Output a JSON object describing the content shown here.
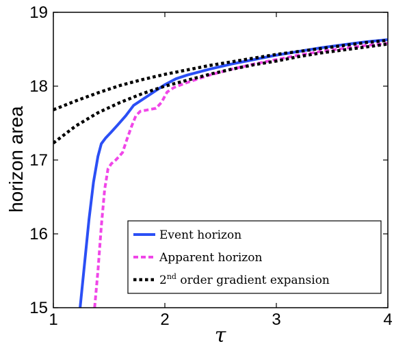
{
  "chart_data": {
    "type": "line",
    "title": "",
    "xlabel": "τ",
    "ylabel": "horizon area",
    "xlim": [
      1,
      4
    ],
    "ylim": [
      15,
      19
    ],
    "xticks": [
      "1",
      "2",
      "3",
      "4"
    ],
    "yticks": [
      "15",
      "16",
      "17",
      "18",
      "19"
    ],
    "grid": false,
    "legend_position": "bottom-right",
    "series": [
      {
        "name": "Event horizon",
        "color": "#2b4ff5",
        "style": "solid",
        "x": [
          1.24,
          1.28,
          1.32,
          1.36,
          1.4,
          1.43,
          1.47,
          1.52,
          1.58,
          1.65,
          1.72,
          1.8,
          1.9,
          2.0,
          2.1,
          2.2,
          2.4,
          2.6,
          2.8,
          3.0,
          3.2,
          3.4,
          3.6,
          3.8,
          4.0
        ],
        "y": [
          15.0,
          15.6,
          16.2,
          16.7,
          17.05,
          17.22,
          17.3,
          17.38,
          17.48,
          17.6,
          17.74,
          17.82,
          17.92,
          18.02,
          18.1,
          18.15,
          18.23,
          18.3,
          18.36,
          18.42,
          18.47,
          18.52,
          18.56,
          18.6,
          18.63
        ]
      },
      {
        "name": "Apparent horizon",
        "color": "#f046e8",
        "style": "dashed",
        "x": [
          1.37,
          1.4,
          1.43,
          1.46,
          1.49,
          1.52,
          1.56,
          1.62,
          1.66,
          1.7,
          1.74,
          1.78,
          1.85,
          1.92,
          1.97,
          2.02,
          2.08,
          2.2,
          2.4,
          2.6,
          2.8,
          3.0,
          3.2,
          3.4,
          3.6,
          3.8,
          4.0
        ],
        "y": [
          15.0,
          15.5,
          16.1,
          16.6,
          16.88,
          16.95,
          17.0,
          17.1,
          17.28,
          17.45,
          17.6,
          17.66,
          17.68,
          17.7,
          17.78,
          17.92,
          17.98,
          18.05,
          18.15,
          18.23,
          18.3,
          18.36,
          18.42,
          18.47,
          18.51,
          18.55,
          18.58
        ]
      },
      {
        "name": "2nd order gradient expansion",
        "label_base": "2",
        "label_sup": "nd",
        "label_rest": " order gradient expansion",
        "color": "#000000",
        "style": "dotted",
        "x": [
          1.0,
          1.2,
          1.4,
          1.6,
          1.8,
          2.0,
          2.2,
          2.4,
          2.6,
          2.8,
          3.0,
          3.2,
          3.4,
          3.6,
          3.8,
          4.0
        ],
        "y": [
          17.68,
          17.8,
          17.91,
          18.01,
          18.09,
          18.16,
          18.22,
          18.28,
          18.33,
          18.38,
          18.43,
          18.47,
          18.51,
          18.55,
          18.59,
          18.62
        ]
      },
      {
        "name": "2nd order gradient expansion",
        "color": "#000000",
        "style": "dotted",
        "x": [
          1.0,
          1.2,
          1.4,
          1.6,
          1.8,
          2.0,
          2.2,
          2.4,
          2.6,
          2.8,
          3.0,
          3.2,
          3.4,
          3.6,
          3.8,
          4.0
        ],
        "y": [
          17.23,
          17.46,
          17.64,
          17.78,
          17.9,
          18.0,
          18.08,
          18.16,
          18.23,
          18.29,
          18.34,
          18.4,
          18.45,
          18.49,
          18.53,
          18.57
        ]
      }
    ]
  }
}
